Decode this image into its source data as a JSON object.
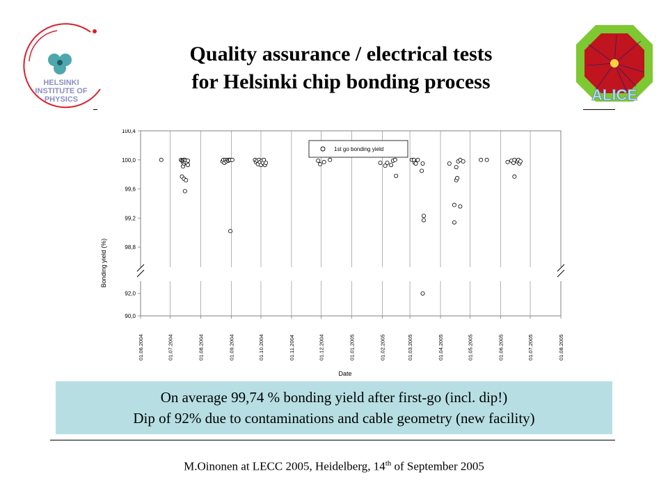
{
  "slide": {
    "title_line1": "Quality assurance / electrical tests",
    "title_line2": "for Helsinki chip bonding process",
    "note_line1": "On average 99,74 % bonding yield after first-go (incl. dip!)",
    "note_line2": "Dip of 92% due to contaminations and cable geometry (new facility)",
    "footer_pre": "M.Oinonen at LECC 2005, Heidelberg, 14",
    "footer_sup": "th",
    "footer_post": " of September 2005"
  },
  "logos": {
    "left_text": [
      "HELSINKI",
      "INSTITUTE OF",
      "PHYSICS"
    ],
    "right_text": "ALICE"
  },
  "colors": {
    "note_bg": "#b7dfe3",
    "alice_green": "#7ec832",
    "alice_red": "#c0141e"
  },
  "chart_data": {
    "type": "scatter",
    "xlabel": "Date",
    "ylabel": "Bonding yield (%)",
    "legend": "1st go bonding yield",
    "legend_position": "top-center",
    "grid": "vertical",
    "broken_y_axis": true,
    "y_ticks_upper": [
      "100,4",
      "100,0",
      "99,6",
      "99,2",
      "98,8"
    ],
    "y_ticks_lower": [
      "92,0",
      "90,0"
    ],
    "ylim_upper": [
      98.6,
      100.4
    ],
    "ylim_lower": [
      90.0,
      92.6
    ],
    "x_ticks": [
      "01.06.2004",
      "01.07.2004",
      "01.08.2004",
      "01.09.2004",
      "01.10.2004",
      "01.11.2004",
      "01.12.2004",
      "01.01.2005",
      "01.02.2005",
      "01.03.2005",
      "01.04.2005",
      "01.05.2005",
      "01.06.2005",
      "01.07.2005",
      "01.08.2005"
    ],
    "points": [
      [
        "2004-06-22",
        100.0
      ],
      [
        "2004-07-12",
        100.0
      ],
      [
        "2004-07-13",
        99.99
      ],
      [
        "2004-07-14",
        99.97
      ],
      [
        "2004-07-14",
        99.91
      ],
      [
        "2004-07-14",
        99.99
      ],
      [
        "2004-07-15",
        99.95
      ],
      [
        "2004-07-15",
        100.0
      ],
      [
        "2004-07-16",
        99.97
      ],
      [
        "2004-07-16",
        100.0
      ],
      [
        "2004-07-17",
        99.99
      ],
      [
        "2004-07-18",
        99.96
      ],
      [
        "2004-07-19",
        99.99
      ],
      [
        "2004-07-19",
        99.93
      ],
      [
        "2004-07-13",
        99.77
      ],
      [
        "2004-07-15",
        99.74
      ],
      [
        "2004-07-17",
        99.72
      ],
      [
        "2004-07-16",
        99.57
      ],
      [
        "2004-08-23",
        99.98
      ],
      [
        "2004-08-24",
        100.0
      ],
      [
        "2004-08-25",
        99.96
      ],
      [
        "2004-08-26",
        100.0
      ],
      [
        "2004-08-27",
        99.98
      ],
      [
        "2004-08-28",
        100.0
      ],
      [
        "2004-08-29",
        99.99
      ],
      [
        "2004-08-30",
        100.0
      ],
      [
        "2004-08-31",
        100.0
      ],
      [
        "2004-09-02",
        100.0
      ],
      [
        "2004-08-31",
        99.02
      ],
      [
        "2004-09-25",
        100.0
      ],
      [
        "2004-09-26",
        99.97
      ],
      [
        "2004-09-27",
        99.99
      ],
      [
        "2004-09-28",
        99.94
      ],
      [
        "2004-09-29",
        100.0
      ],
      [
        "2004-09-30",
        99.97
      ],
      [
        "2004-10-01",
        99.93
      ],
      [
        "2004-10-02",
        99.99
      ],
      [
        "2004-10-03",
        99.96
      ],
      [
        "2004-10-04",
        100.0
      ],
      [
        "2004-10-05",
        99.93
      ],
      [
        "2004-10-06",
        99.96
      ],
      [
        "2004-11-28",
        99.99
      ],
      [
        "2004-11-30",
        99.94
      ],
      [
        "2004-12-04",
        99.97
      ],
      [
        "2004-12-10",
        100.0
      ],
      [
        "2005-01-30",
        99.96
      ],
      [
        "2005-02-04",
        99.92
      ],
      [
        "2005-02-06",
        99.96
      ],
      [
        "2005-02-10",
        99.93
      ],
      [
        "2005-02-12",
        99.99
      ],
      [
        "2005-02-14",
        100.0
      ],
      [
        "2005-02-15",
        99.78
      ],
      [
        "2005-03-03",
        100.0
      ],
      [
        "2005-03-05",
        100.0
      ],
      [
        "2005-03-06",
        99.96
      ],
      [
        "2005-03-07",
        99.95
      ],
      [
        "2005-03-09",
        100.0
      ],
      [
        "2005-03-13",
        99.85
      ],
      [
        "2005-03-14",
        99.95
      ],
      [
        "2005-03-15",
        99.23
      ],
      [
        "2005-03-15",
        99.17
      ],
      [
        "2005-03-14",
        92.0
      ],
      [
        "2005-04-10",
        99.95
      ],
      [
        "2005-04-15",
        99.38
      ],
      [
        "2005-04-15",
        99.14
      ],
      [
        "2005-04-17",
        99.72
      ],
      [
        "2005-04-17",
        99.9
      ],
      [
        "2005-04-21",
        99.36
      ],
      [
        "2005-04-19",
        99.98
      ],
      [
        "2005-04-21",
        100.0
      ],
      [
        "2005-04-24",
        99.98
      ],
      [
        "2005-04-18",
        99.75
      ],
      [
        "2005-05-12",
        100.0
      ],
      [
        "2005-05-18",
        100.0
      ],
      [
        "2005-06-08",
        99.97
      ],
      [
        "2005-06-12",
        99.99
      ],
      [
        "2005-06-14",
        99.96
      ],
      [
        "2005-06-15",
        99.77
      ],
      [
        "2005-06-15",
        100.0
      ],
      [
        "2005-06-18",
        99.98
      ],
      [
        "2005-06-19",
        100.0
      ],
      [
        "2005-06-20",
        99.95
      ],
      [
        "2005-06-21",
        99.98
      ]
    ]
  }
}
